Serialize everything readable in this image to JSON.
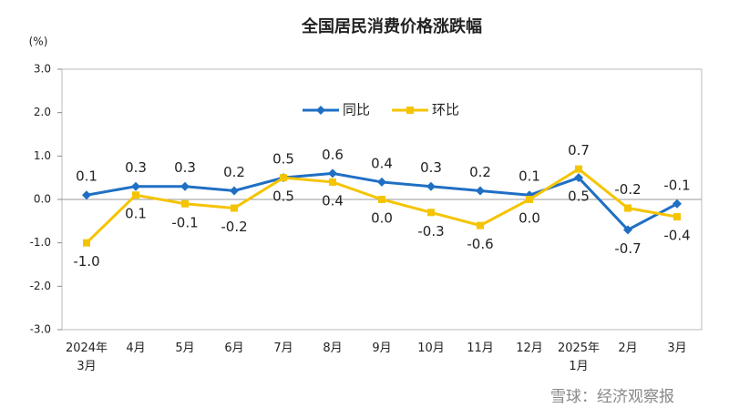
{
  "chart_data": {
    "type": "line",
    "title": "全国居民消费价格涨跌幅",
    "y_label": "(%)",
    "categories": [
      "2024年\n3月",
      "4月",
      "5月",
      "6月",
      "7月",
      "8月",
      "9月",
      "10月",
      "11月",
      "12月",
      "2025年\n1月",
      "2月",
      "3月"
    ],
    "series": [
      {
        "name": "同比",
        "color": "#1f6fc4",
        "values": [
          0.1,
          0.3,
          0.3,
          0.2,
          0.5,
          0.6,
          0.4,
          0.3,
          0.2,
          0.1,
          0.5,
          -0.7,
          -0.1
        ],
        "value_labels": [
          "0.1",
          "0.3",
          "0.3",
          "0.2",
          "0.5",
          "0.6",
          "0.4",
          "0.3",
          "0.2",
          "0.1",
          "0.5",
          "-0.7",
          "-0.1"
        ]
      },
      {
        "name": "环比",
        "color": "#f5c400",
        "values": [
          -1.0,
          0.1,
          -0.1,
          -0.2,
          0.5,
          0.4,
          0.0,
          -0.3,
          -0.6,
          0.0,
          0.7,
          -0.2,
          -0.4
        ],
        "value_labels": [
          "-1.0",
          "0.1",
          "-0.1",
          "-0.2",
          "0.5",
          "0.4",
          "0.0",
          "-0.3",
          "-0.6",
          "0.0",
          "0.7",
          "-0.2",
          "-0.4"
        ]
      }
    ],
    "ylim": [
      -3,
      3
    ],
    "yticks": [
      {
        "value": -3,
        "label": "-3.0"
      },
      {
        "value": -2,
        "label": "-2.0"
      },
      {
        "value": -1,
        "label": "-1.0"
      },
      {
        "value": 0,
        "label": "0.0"
      },
      {
        "value": 1,
        "label": "1.0"
      },
      {
        "value": 2,
        "label": "2.0"
      },
      {
        "value": 3,
        "label": "3.0"
      }
    ],
    "legend": "top-center",
    "watermark": "雪球：经济观察报"
  }
}
